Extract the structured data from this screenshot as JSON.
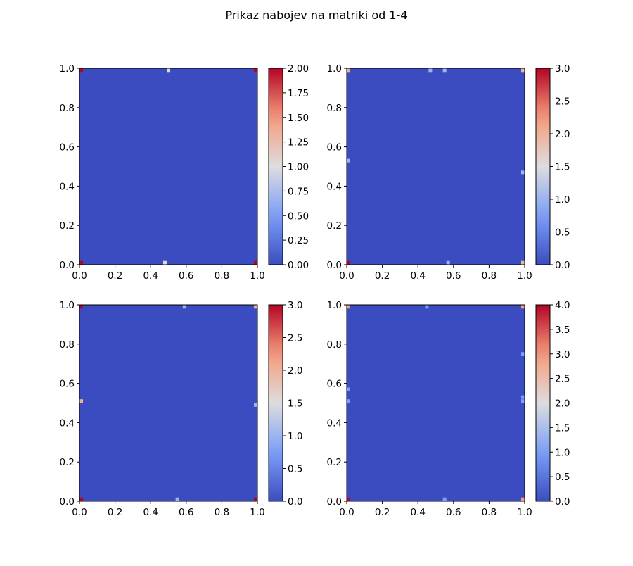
{
  "figure": {
    "title": "Prikaz nabojev na matriki od 1-4"
  },
  "chart_data": [
    {
      "type": "heatmap",
      "colormap": "coolwarm",
      "xlim": [
        0,
        1
      ],
      "ylim": [
        0,
        1
      ],
      "xticks": [
        "0.0",
        "0.2",
        "0.4",
        "0.6",
        "0.8",
        "1.0"
      ],
      "yticks": [
        "0.0",
        "0.2",
        "0.4",
        "0.6",
        "0.8",
        "1.0"
      ],
      "background_value": 0,
      "cells": [
        {
          "x": 0.01,
          "y": 0.99,
          "v": 2
        },
        {
          "x": 0.5,
          "y": 0.99,
          "v": 1
        },
        {
          "x": 0.99,
          "y": 0.99,
          "v": 2
        },
        {
          "x": 0.01,
          "y": 0.01,
          "v": 2
        },
        {
          "x": 0.48,
          "y": 0.01,
          "v": 1
        },
        {
          "x": 0.99,
          "y": 0.01,
          "v": 2
        }
      ],
      "colorbar": {
        "min": 0,
        "max": 2,
        "ticks": [
          "0.00",
          "0.25",
          "0.50",
          "0.75",
          "1.00",
          "1.25",
          "1.50",
          "1.75",
          "2.00"
        ]
      }
    },
    {
      "type": "heatmap",
      "colormap": "coolwarm",
      "xlim": [
        0,
        1
      ],
      "ylim": [
        0,
        1
      ],
      "xticks": [
        "0.0",
        "0.2",
        "0.4",
        "0.6",
        "0.8",
        "1.0"
      ],
      "yticks": [
        "0.0",
        "0.2",
        "0.4",
        "0.6",
        "0.8",
        "1.0"
      ],
      "background_value": 0,
      "cells": [
        {
          "x": 0.01,
          "y": 0.99,
          "v": 2
        },
        {
          "x": 0.47,
          "y": 0.99,
          "v": 1
        },
        {
          "x": 0.55,
          "y": 0.99,
          "v": 1
        },
        {
          "x": 0.99,
          "y": 0.99,
          "v": 2
        },
        {
          "x": 0.01,
          "y": 0.53,
          "v": 1
        },
        {
          "x": 0.99,
          "y": 0.47,
          "v": 1
        },
        {
          "x": 0.01,
          "y": 0.01,
          "v": 3
        },
        {
          "x": 0.57,
          "y": 0.01,
          "v": 1
        },
        {
          "x": 0.99,
          "y": 0.01,
          "v": 2
        }
      ],
      "colorbar": {
        "min": 0,
        "max": 3,
        "ticks": [
          "0.0",
          "0.5",
          "1.0",
          "1.5",
          "2.0",
          "2.5",
          "3.0"
        ]
      }
    },
    {
      "type": "heatmap",
      "colormap": "coolwarm",
      "xlim": [
        0,
        1
      ],
      "ylim": [
        0,
        1
      ],
      "xticks": [
        "0.0",
        "0.2",
        "0.4",
        "0.6",
        "0.8",
        "1.0"
      ],
      "yticks": [
        "0.0",
        "0.2",
        "0.4",
        "0.6",
        "0.8",
        "1.0"
      ],
      "background_value": 0,
      "cells": [
        {
          "x": 0.01,
          "y": 0.99,
          "v": 3
        },
        {
          "x": 0.59,
          "y": 0.99,
          "v": 1
        },
        {
          "x": 0.99,
          "y": 0.99,
          "v": 2
        },
        {
          "x": 0.01,
          "y": 0.51,
          "v": 2
        },
        {
          "x": 0.99,
          "y": 0.49,
          "v": 1
        },
        {
          "x": 0.01,
          "y": 0.01,
          "v": 3
        },
        {
          "x": 0.55,
          "y": 0.01,
          "v": 1
        },
        {
          "x": 0.99,
          "y": 0.01,
          "v": 3
        }
      ],
      "colorbar": {
        "min": 0,
        "max": 3,
        "ticks": [
          "0.0",
          "0.5",
          "1.0",
          "1.5",
          "2.0",
          "2.5",
          "3.0"
        ]
      }
    },
    {
      "type": "heatmap",
      "colormap": "coolwarm",
      "xlim": [
        0,
        1
      ],
      "ylim": [
        0,
        1
      ],
      "xticks": [
        "0.0",
        "0.2",
        "0.4",
        "0.6",
        "0.8",
        "1.0"
      ],
      "yticks": [
        "0.0",
        "0.2",
        "0.4",
        "0.6",
        "0.8",
        "1.0"
      ],
      "background_value": 0,
      "cells": [
        {
          "x": 0.01,
          "y": 0.99,
          "v": 3
        },
        {
          "x": 0.45,
          "y": 0.99,
          "v": 1
        },
        {
          "x": 0.99,
          "y": 0.99,
          "v": 3
        },
        {
          "x": 0.99,
          "y": 0.75,
          "v": 1
        },
        {
          "x": 0.01,
          "y": 0.57,
          "v": 1
        },
        {
          "x": 0.01,
          "y": 0.51,
          "v": 1
        },
        {
          "x": 0.99,
          "y": 0.53,
          "v": 1
        },
        {
          "x": 0.99,
          "y": 0.51,
          "v": 1
        },
        {
          "x": 0.01,
          "y": 0.01,
          "v": 4
        },
        {
          "x": 0.55,
          "y": 0.01,
          "v": 1
        },
        {
          "x": 0.99,
          "y": 0.01,
          "v": 3
        }
      ],
      "colorbar": {
        "min": 0,
        "max": 4,
        "ticks": [
          "0.0",
          "0.5",
          "1.0",
          "1.5",
          "2.0",
          "2.5",
          "3.0",
          "3.5",
          "4.0"
        ]
      }
    }
  ]
}
